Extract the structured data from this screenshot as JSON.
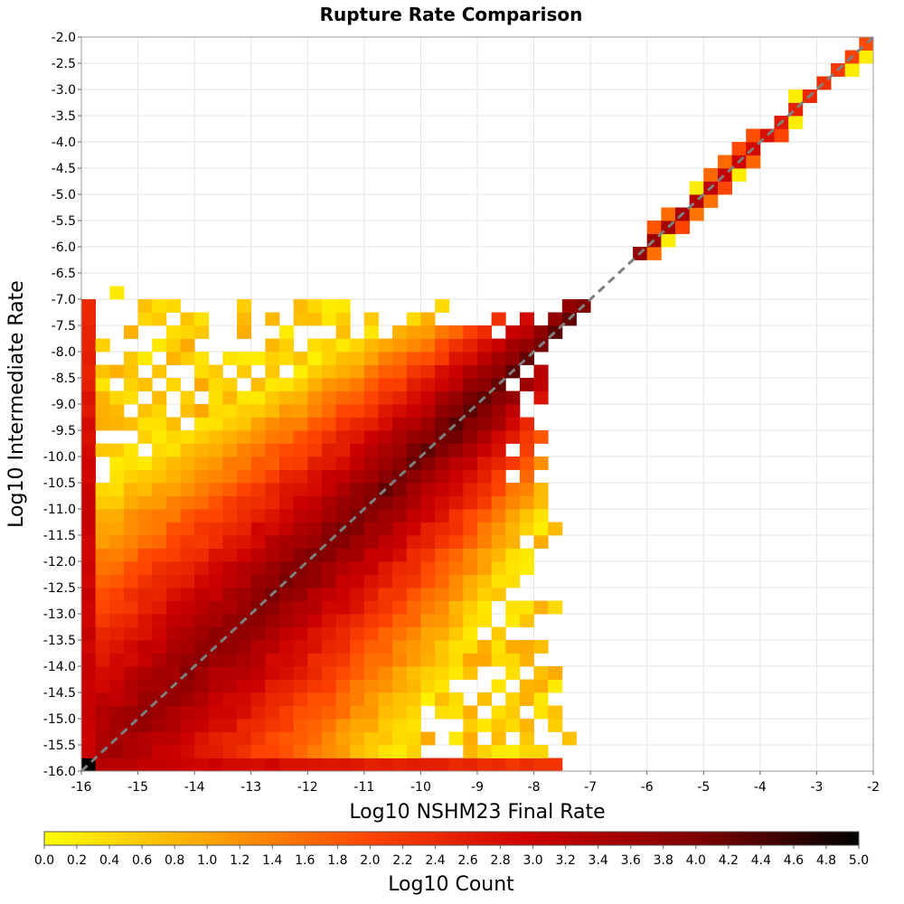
{
  "chart_data": {
    "type": "heatmap",
    "title": "Rupture Rate Comparison",
    "xlabel": "Log10 NSHM23 Final Rate",
    "ylabel": "Log10 Intermediate Rate",
    "xlim": [
      -16,
      -2
    ],
    "ylim": [
      -16,
      -2
    ],
    "bin_size": 0.25,
    "x_ticks": [
      "-16",
      "-15",
      "-14",
      "-13",
      "-12",
      "-11",
      "-10",
      "-9",
      "-8",
      "-7",
      "-6",
      "-5",
      "-4",
      "-3",
      "-2"
    ],
    "y_ticks": [
      "-16.0",
      "-15.5",
      "-15.0",
      "-14.5",
      "-14.0",
      "-13.5",
      "-13.0",
      "-12.5",
      "-12.0",
      "-11.5",
      "-11.0",
      "-10.5",
      "-10.0",
      "-9.5",
      "-9.0",
      "-8.5",
      "-8.0",
      "-7.5",
      "-7.0",
      "-6.5",
      "-6.0",
      "-5.5",
      "-5.0",
      "-4.5",
      "-4.0",
      "-3.5",
      "-3.0",
      "-2.5",
      "-2.0"
    ],
    "grid": true,
    "reference_line": "y = x (dashed gray)",
    "colorbar": {
      "label": "Log10 Count",
      "range": [
        0.0,
        5.0
      ],
      "ticks": [
        "0.0",
        "0.2",
        "0.4",
        "0.6",
        "0.8",
        "1.0",
        "1.2",
        "1.4",
        "1.6",
        "1.8",
        "2.0",
        "2.2",
        "2.4",
        "2.6",
        "2.8",
        "3.0",
        "3.2",
        "3.4",
        "3.6",
        "3.8",
        "4.0",
        "4.2",
        "4.4",
        "4.6",
        "4.8",
        "5.0"
      ],
      "colors": [
        "#ffff00",
        "#ffa500",
        "#ff4500",
        "#cc0000",
        "#800000",
        "#000000"
      ]
    },
    "distribution": {
      "diagonal_peak_log10_count": 4.3,
      "bottom_row_y": -16.0,
      "left_column_x": -16.0,
      "corner_cell_log10_count": 5.0,
      "lower_envelope_x_max": -7.5,
      "upper_envelope_y_max": -7.0
    }
  }
}
